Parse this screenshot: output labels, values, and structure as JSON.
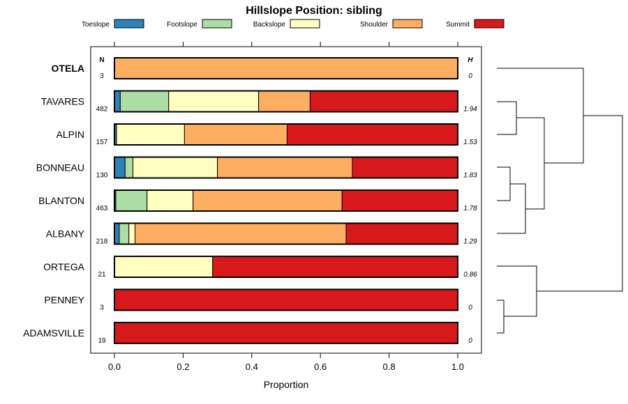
{
  "chart_data": {
    "type": "bar",
    "stacked": true,
    "orientation": "horizontal",
    "title": "Hillslope Position: sibling",
    "xlabel": "Proportion",
    "xlim": [
      0,
      1
    ],
    "xticks": [
      "0.0",
      "0.2",
      "0.4",
      "0.6",
      "0.8",
      "1.0"
    ],
    "n_header": "N",
    "h_header": "H",
    "legend_position": "top",
    "series": [
      {
        "name": "Toeslope",
        "color": "#2b83ba"
      },
      {
        "name": "Footslope",
        "color": "#abdda4"
      },
      {
        "name": "Backslope",
        "color": "#ffffbf"
      },
      {
        "name": "Shoulder",
        "color": "#fdae61"
      },
      {
        "name": "Summit",
        "color": "#d7191c"
      }
    ],
    "rows": [
      {
        "label": "OTELA",
        "bold": true,
        "n": "3",
        "h": "0",
        "values": [
          0,
          0,
          0,
          1.0,
          0
        ]
      },
      {
        "label": "TAVARES",
        "n": "482",
        "h": "1.94",
        "values": [
          0.017,
          0.141,
          0.262,
          0.15,
          0.43
        ]
      },
      {
        "label": "ALPIN",
        "n": "157",
        "h": "1.53",
        "values": [
          0.006,
          0,
          0.198,
          0.299,
          0.497
        ]
      },
      {
        "label": "BONNEAU",
        "n": "130",
        "h": "1.83",
        "values": [
          0.031,
          0.023,
          0.246,
          0.393,
          0.307
        ]
      },
      {
        "label": "BLANTON",
        "n": "463",
        "h": "1.78",
        "values": [
          0.004,
          0.091,
          0.134,
          0.434,
          0.337
        ]
      },
      {
        "label": "ALBANY",
        "n": "218",
        "h": "1.29",
        "values": [
          0.014,
          0.028,
          0.018,
          0.615,
          0.325
        ]
      },
      {
        "label": "ORTEGA",
        "n": "21",
        "h": "0.86",
        "values": [
          0,
          0,
          0.286,
          0,
          0.714
        ]
      },
      {
        "label": "PENNEY",
        "n": "3",
        "h": "0",
        "values": [
          0,
          0,
          0,
          0,
          1.0
        ]
      },
      {
        "label": "ADAMSVILLE",
        "n": "19",
        "h": "0",
        "values": [
          0,
          0,
          0,
          0,
          1.0
        ]
      }
    ]
  }
}
